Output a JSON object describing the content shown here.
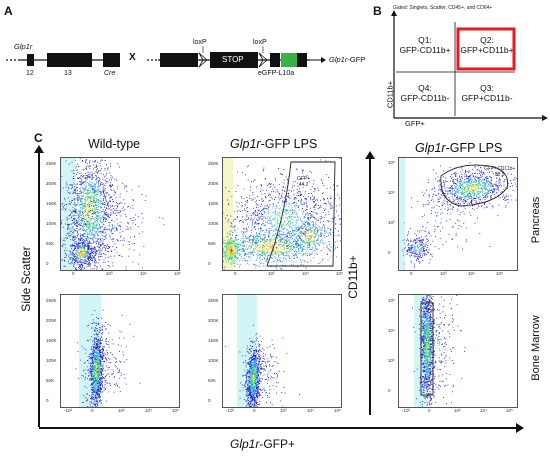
{
  "panels": {
    "a": "A",
    "b": "B",
    "c": "C"
  },
  "schematic": {
    "left_gene": "Glp1r",
    "exon_12": "12",
    "exon_13": "13",
    "cre": "Cre",
    "cross": "X",
    "loxp_1": "loxP",
    "loxp_2": "loxP",
    "stop": "STOP",
    "egfp": "eGFP-L10a",
    "result_gene": "Glp1r",
    "result_suffix": "-GFP"
  },
  "gating": {
    "header": "Gated: Singlets, Scatter, CD45+, and CD64+",
    "y_axis": "CD11b+",
    "x_axis": "GFP+",
    "q1": [
      "Q1:",
      "GFP-CD11b+"
    ],
    "q2": [
      "Q2:",
      "GFP+CD11b+"
    ],
    "q3": [
      "Q3:",
      "GFP+CD11b-"
    ],
    "q4": [
      "Q4:",
      "GFP-CD11b-"
    ],
    "highlight_color": "#e8191f"
  },
  "flow": {
    "col1_title": "Wild-type",
    "col2_title_gene": "Glp1r",
    "col2_title_rest": "-GFP LPS",
    "col3_title_gene": "Glp1r",
    "col3_title_rest": "-GFP LPS",
    "y_axis_left": "Side Scatter",
    "y_axis_right": "CD11b+",
    "x_axis_gene": "Glp1r",
    "x_axis_rest": "-GFP+",
    "row_label_top": "Pancreas",
    "row_label_bottom": "Bone Marrow",
    "gate_mid_label": "GFP+",
    "gate_mid_value": "44.2",
    "gate_right_label": "GFP+CD11b+",
    "gate_right_value": "90.3",
    "ssc_ticks_top": [
      "250K",
      "200K",
      "150K",
      "100K",
      "50K",
      "0"
    ],
    "ssc_ticks_bottom": [
      "250K",
      "200K",
      "150K",
      "100K",
      "50K",
      "0"
    ],
    "log_ticks_x_top": [
      "0",
      "10³",
      "10⁴",
      "10⁵"
    ],
    "log_ticks_x_bottom": [
      "-10³",
      "0",
      "10³",
      "10⁴",
      "10⁵"
    ],
    "cd11b_ticks": [
      "10⁵",
      "10⁴",
      "10³",
      "0"
    ],
    "density_colors": [
      "#1a22c9",
      "#2ea0e6",
      "#3fd07a",
      "#c6e33b",
      "#e8c520",
      "#e04a1c"
    ]
  }
}
